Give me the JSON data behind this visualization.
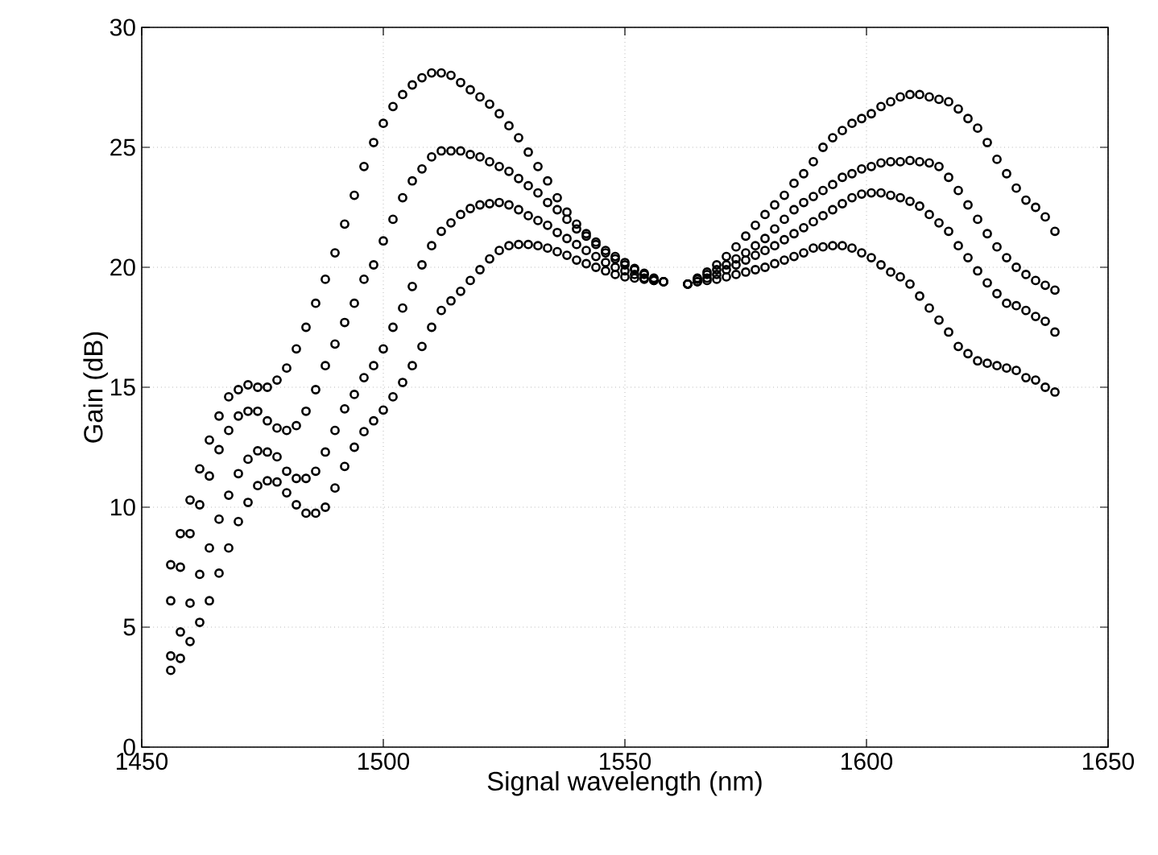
{
  "chart_data": {
    "type": "scatter",
    "xlabel": "Signal wavelength (nm)",
    "ylabel": "Gain (dB)",
    "xlim": [
      1450,
      1650
    ],
    "ylim": [
      0,
      30
    ],
    "xticks": [
      1450,
      1500,
      1550,
      1600,
      1650
    ],
    "yticks": [
      0,
      5,
      10,
      15,
      20,
      25,
      30
    ],
    "grid": true,
    "marker": "circle",
    "x": [
      1456,
      1458,
      1460,
      1462,
      1464,
      1466,
      1468,
      1470,
      1472,
      1474,
      1476,
      1478,
      1480,
      1482,
      1484,
      1486,
      1488,
      1490,
      1492,
      1494,
      1496,
      1498,
      1500,
      1502,
      1504,
      1506,
      1508,
      1510,
      1512,
      1514,
      1516,
      1518,
      1520,
      1522,
      1524,
      1526,
      1528,
      1530,
      1532,
      1534,
      1536,
      1538,
      1540,
      1542,
      1544,
      1546,
      1548,
      1550,
      1552,
      1554,
      1556,
      1558,
      1563,
      1565,
      1567,
      1569,
      1571,
      1573,
      1575,
      1577,
      1579,
      1581,
      1583,
      1585,
      1587,
      1589,
      1591,
      1593,
      1595,
      1597,
      1599,
      1601,
      1603,
      1605,
      1607,
      1609,
      1611,
      1613,
      1615,
      1617,
      1619,
      1621,
      1623,
      1625,
      1627,
      1629,
      1631,
      1633,
      1635,
      1637,
      1639
    ],
    "series": [
      {
        "color": "#000000",
        "values": [
          7.6,
          8.9,
          10.3,
          11.6,
          12.8,
          13.8,
          14.6,
          14.9,
          15.1,
          15.0,
          15.0,
          15.3,
          15.8,
          16.6,
          17.5,
          18.5,
          19.5,
          20.6,
          21.8,
          23.0,
          24.2,
          25.2,
          26.0,
          26.7,
          27.2,
          27.6,
          27.9,
          28.1,
          28.1,
          28.0,
          27.7,
          27.4,
          27.1,
          26.8,
          26.4,
          25.9,
          25.4,
          24.8,
          24.2,
          23.6,
          22.9,
          22.3,
          21.8,
          21.4,
          21.05,
          20.7,
          20.45,
          20.2,
          19.95,
          19.75,
          19.55,
          19.4,
          19.3,
          19.55,
          19.8,
          20.1,
          20.45,
          20.85,
          21.3,
          21.75,
          22.2,
          22.6,
          23.0,
          23.5,
          23.9,
          24.4,
          25.0,
          25.4,
          25.7,
          26.0,
          26.2,
          26.4,
          26.7,
          26.9,
          27.1,
          27.2,
          27.2,
          27.1,
          27.0,
          26.9,
          26.6,
          26.2,
          25.8,
          25.2,
          24.5,
          23.9,
          23.3,
          22.8,
          22.5,
          22.1,
          21.5
        ]
      },
      {
        "color": "#000000",
        "values": [
          6.1,
          7.5,
          8.9,
          10.1,
          11.3,
          12.4,
          13.2,
          13.8,
          14.0,
          14.0,
          13.6,
          13.3,
          13.2,
          13.4,
          14.0,
          14.9,
          15.9,
          16.8,
          17.7,
          18.5,
          19.5,
          20.1,
          21.1,
          22.0,
          22.9,
          23.6,
          24.1,
          24.6,
          24.85,
          24.85,
          24.85,
          24.7,
          24.6,
          24.4,
          24.2,
          24.0,
          23.7,
          23.4,
          23.1,
          22.7,
          22.4,
          22.0,
          21.6,
          21.3,
          20.95,
          20.6,
          20.35,
          20.1,
          19.9,
          19.7,
          19.5,
          19.4,
          19.3,
          19.5,
          19.7,
          19.9,
          20.1,
          20.35,
          20.6,
          20.9,
          21.2,
          21.6,
          22.0,
          22.4,
          22.7,
          22.95,
          23.2,
          23.45,
          23.75,
          23.9,
          24.1,
          24.2,
          24.35,
          24.4,
          24.4,
          24.45,
          24.4,
          24.35,
          24.2,
          23.75,
          23.2,
          22.6,
          22.0,
          21.4,
          20.85,
          20.4,
          20.0,
          19.7,
          19.45,
          19.25,
          19.05
        ]
      },
      {
        "color": "#000000",
        "values": [
          3.8,
          4.8,
          6.0,
          7.2,
          8.3,
          9.5,
          10.5,
          11.4,
          12.0,
          12.35,
          12.3,
          12.1,
          11.5,
          11.2,
          11.2,
          11.5,
          12.3,
          13.2,
          14.1,
          14.7,
          15.4,
          15.9,
          16.6,
          17.5,
          18.3,
          19.2,
          20.1,
          20.9,
          21.5,
          21.85,
          22.2,
          22.45,
          22.6,
          22.65,
          22.7,
          22.6,
          22.4,
          22.15,
          21.95,
          21.75,
          21.45,
          21.2,
          20.95,
          20.7,
          20.45,
          20.2,
          20.0,
          19.85,
          19.7,
          19.55,
          19.45,
          19.4,
          19.3,
          19.4,
          19.55,
          19.7,
          19.9,
          20.1,
          20.3,
          20.5,
          20.7,
          20.9,
          21.15,
          21.4,
          21.65,
          21.9,
          22.15,
          22.4,
          22.65,
          22.9,
          23.05,
          23.1,
          23.1,
          23.0,
          22.9,
          22.75,
          22.55,
          22.2,
          21.85,
          21.5,
          20.9,
          20.4,
          19.85,
          19.35,
          18.9,
          18.5,
          18.4,
          18.2,
          17.95,
          17.75,
          17.3
        ]
      },
      {
        "color": "#000000",
        "values": [
          3.2,
          3.7,
          4.4,
          5.2,
          6.1,
          7.25,
          8.3,
          9.4,
          10.2,
          10.9,
          11.1,
          11.05,
          10.6,
          10.1,
          9.75,
          9.75,
          10.0,
          10.8,
          11.7,
          12.5,
          13.15,
          13.6,
          14.05,
          14.6,
          15.2,
          15.9,
          16.7,
          17.5,
          18.2,
          18.6,
          19.0,
          19.45,
          19.9,
          20.35,
          20.7,
          20.9,
          20.95,
          20.95,
          20.9,
          20.8,
          20.65,
          20.5,
          20.3,
          20.15,
          20.0,
          19.85,
          19.7,
          19.6,
          19.55,
          19.5,
          19.45,
          19.4,
          19.3,
          19.4,
          19.45,
          19.5,
          19.6,
          19.7,
          19.8,
          19.9,
          20.0,
          20.15,
          20.3,
          20.45,
          20.6,
          20.8,
          20.85,
          20.9,
          20.9,
          20.8,
          20.6,
          20.4,
          20.1,
          19.8,
          19.6,
          19.3,
          18.8,
          18.3,
          17.8,
          17.3,
          16.7,
          16.4,
          16.1,
          16.0,
          15.9,
          15.8,
          15.7,
          15.4,
          15.3,
          15.0,
          14.8
        ]
      }
    ]
  }
}
